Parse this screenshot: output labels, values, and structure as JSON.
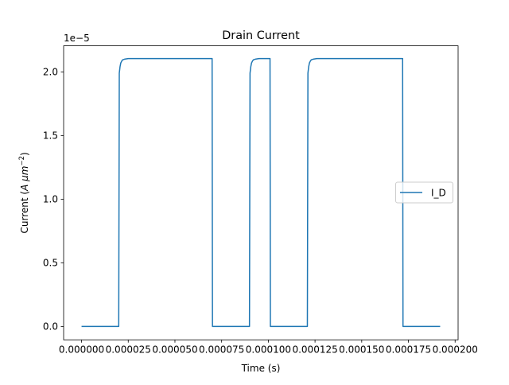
{
  "chart_data": {
    "type": "line",
    "title": "Drain Current",
    "xlabel": "Time (s)",
    "ylabel_parts": {
      "prefix": "Current (",
      "unit_base": "A μm",
      "unit_exponent": "−2",
      "suffix": ")"
    },
    "y_offset_text": "1e−5",
    "xlim": [
      -9.6e-06,
      0.0002016
    ],
    "ylim": [
      -0.105,
      2.205
    ],
    "xticks": [
      0.0,
      2.5e-05,
      5e-05,
      7.5e-05,
      0.0001,
      0.000125,
      0.00015,
      0.000175,
      0.0002
    ],
    "xtick_labels": [
      "0.000000",
      "0.000025",
      "0.000050",
      "0.000075",
      "0.000100",
      "0.000125",
      "0.000150",
      "0.000175",
      "0.000200"
    ],
    "yticks": [
      0.0,
      0.5,
      1.0,
      1.5,
      2.0
    ],
    "ytick_labels": [
      "0.0",
      "0.5",
      "1.0",
      "1.5",
      "2.0"
    ],
    "grid": false,
    "legend": {
      "placement": "center-right",
      "entries": [
        "I_D"
      ]
    },
    "series": [
      {
        "name": "I_D",
        "color": "#1f77b4",
        "x": [
          0.0,
          1.99e-05,
          2.02e-05,
          2.06e-05,
          2.1e-05,
          2.15e-05,
          2.2e-05,
          2.3e-05,
          2.5e-05,
          3e-05,
          5e-05,
          6.99e-05,
          7.01e-05,
          8.99e-05,
          9.02e-05,
          9.06e-05,
          9.1e-05,
          9.15e-05,
          9.2e-05,
          9.3e-05,
          9.5e-05,
          0.0001,
          0.0001009,
          0.0001011,
          0.0001209,
          0.0001212,
          0.0001216,
          0.000122,
          0.0001225,
          0.000123,
          0.000124,
          0.000126,
          0.00013,
          0.00015,
          0.0001719,
          0.0001721,
          0.000192
        ],
        "y": [
          0.0,
          0.0,
          1.99,
          2.04,
          2.07,
          2.085,
          2.095,
          2.1,
          2.105,
          2.105,
          2.105,
          2.105,
          0.0,
          0.0,
          1.99,
          2.04,
          2.07,
          2.085,
          2.095,
          2.1,
          2.105,
          2.105,
          2.105,
          0.0,
          0.0,
          1.99,
          2.04,
          2.07,
          2.085,
          2.095,
          2.1,
          2.105,
          2.105,
          2.105,
          2.105,
          0.0,
          0.0
        ]
      }
    ]
  }
}
